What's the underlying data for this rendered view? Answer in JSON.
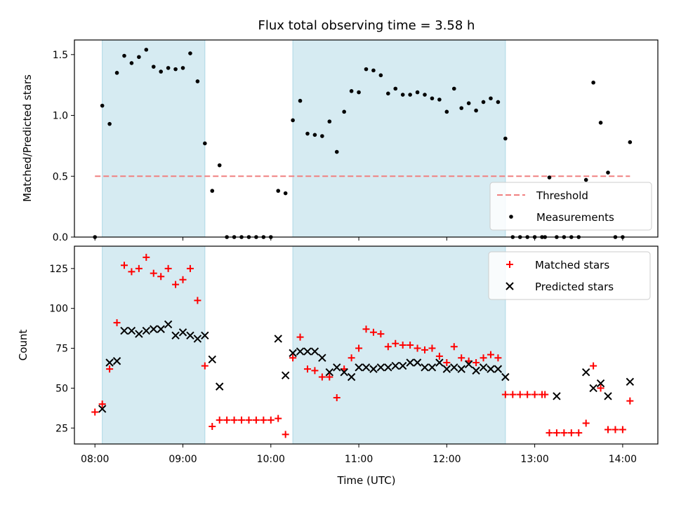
{
  "chart_data": [
    {
      "type": "scatter",
      "title": "Flux total observing time = 3.58 h",
      "ylabel": "Matched/Predicted stars",
      "xlabel": "",
      "xlim": [
        "07:46",
        "14:24"
      ],
      "ylim": [
        0,
        1.62
      ],
      "yticks": [
        0.0,
        0.5,
        1.0,
        1.5
      ],
      "ytick_labels": [
        "0.0",
        "0.5",
        "1.0",
        "1.5"
      ],
      "xticks": [
        "08:00",
        "09:00",
        "10:00",
        "11:00",
        "12:00",
        "13:00",
        "14:00"
      ],
      "shaded_intervals": [
        [
          "08:05",
          "09:15"
        ],
        [
          "10:15",
          "12:40"
        ]
      ],
      "shade_color": "#add8e6",
      "legend": {
        "position": "lower-right",
        "entries": [
          {
            "label": "Threshold",
            "marker": "dashed-line",
            "color": "#f08080"
          },
          {
            "label": "Measurements",
            "marker": "dot",
            "color": "#000000"
          }
        ]
      },
      "series": [
        {
          "name": "Threshold",
          "style": "dashed-line",
          "color": "#f08080",
          "x": [
            "08:00",
            "14:05"
          ],
          "y": [
            0.5,
            0.5
          ]
        },
        {
          "name": "Measurements",
          "style": "dot",
          "color": "#000000",
          "x": [
            "08:00",
            "08:05",
            "08:10",
            "08:15",
            "08:20",
            "08:25",
            "08:30",
            "08:35",
            "08:40",
            "08:45",
            "08:50",
            "08:55",
            "09:00",
            "09:05",
            "09:10",
            "09:15",
            "09:20",
            "09:25",
            "09:30",
            "09:35",
            "09:40",
            "09:45",
            "09:50",
            "09:55",
            "10:00",
            "10:05",
            "10:10",
            "10:15",
            "10:20",
            "10:25",
            "10:30",
            "10:35",
            "10:40",
            "10:45",
            "10:50",
            "10:55",
            "11:00",
            "11:05",
            "11:10",
            "11:15",
            "11:20",
            "11:25",
            "11:30",
            "11:35",
            "11:40",
            "11:45",
            "11:50",
            "11:55",
            "12:00",
            "12:05",
            "12:10",
            "12:15",
            "12:20",
            "12:25",
            "12:30",
            "12:35",
            "12:40",
            "12:45",
            "12:50",
            "12:55",
            "13:00",
            "13:05",
            "13:07",
            "13:10",
            "13:15",
            "13:20",
            "13:25",
            "13:30",
            "13:35",
            "13:40",
            "13:45",
            "13:50",
            "13:55",
            "14:00",
            "14:05"
          ],
          "y": [
            0.0,
            1.08,
            0.93,
            1.35,
            1.49,
            1.43,
            1.48,
            1.54,
            1.4,
            1.36,
            1.39,
            1.38,
            1.39,
            1.51,
            1.28,
            0.77,
            0.38,
            0.59,
            0.0,
            0.0,
            0.0,
            0.0,
            0.0,
            0.0,
            0.0,
            0.38,
            0.36,
            0.96,
            1.12,
            0.85,
            0.84,
            0.83,
            0.95,
            0.7,
            1.03,
            1.2,
            1.19,
            1.38,
            1.37,
            1.33,
            1.18,
            1.22,
            1.17,
            1.17,
            1.19,
            1.17,
            1.14,
            1.13,
            1.03,
            1.22,
            1.06,
            1.1,
            1.04,
            1.11,
            1.14,
            1.11,
            0.81,
            0.0,
            0.0,
            0.0,
            0.0,
            0.0,
            0.0,
            0.49,
            0.0,
            0.0,
            0.0,
            0.0,
            0.47,
            1.27,
            0.94,
            0.53,
            0.0,
            0.0,
            0.78
          ]
        }
      ]
    },
    {
      "type": "scatter",
      "title": "",
      "ylabel": "Count",
      "xlabel": "Time (UTC)",
      "xlim": [
        "07:46",
        "14:24"
      ],
      "ylim": [
        15,
        139
      ],
      "yticks": [
        25,
        50,
        75,
        100,
        125
      ],
      "ytick_labels": [
        "25",
        "50",
        "75",
        "100",
        "125"
      ],
      "xticks": [
        "08:00",
        "09:00",
        "10:00",
        "11:00",
        "12:00",
        "13:00",
        "14:00"
      ],
      "xtick_labels": [
        "08:00",
        "09:00",
        "10:00",
        "11:00",
        "12:00",
        "13:00",
        "14:00"
      ],
      "shaded_intervals": [
        [
          "08:05",
          "09:15"
        ],
        [
          "10:15",
          "12:40"
        ]
      ],
      "shade_color": "#add8e6",
      "legend": {
        "position": "upper-right",
        "entries": [
          {
            "label": "Matched stars",
            "marker": "plus",
            "color": "#ff0000"
          },
          {
            "label": "Predicted stars",
            "marker": "cross",
            "color": "#000000"
          }
        ]
      },
      "series": [
        {
          "name": "Matched stars",
          "style": "plus",
          "color": "#ff0000",
          "x": [
            "08:00",
            "08:05",
            "08:10",
            "08:15",
            "08:20",
            "08:25",
            "08:30",
            "08:35",
            "08:40",
            "08:45",
            "08:50",
            "08:55",
            "09:00",
            "09:05",
            "09:10",
            "09:15",
            "09:20",
            "09:25",
            "09:30",
            "09:35",
            "09:40",
            "09:45",
            "09:50",
            "09:55",
            "10:00",
            "10:05",
            "10:10",
            "10:15",
            "10:20",
            "10:25",
            "10:30",
            "10:35",
            "10:40",
            "10:45",
            "10:50",
            "10:55",
            "11:00",
            "11:05",
            "11:10",
            "11:15",
            "11:20",
            "11:25",
            "11:30",
            "11:35",
            "11:40",
            "11:45",
            "11:50",
            "11:55",
            "12:00",
            "12:05",
            "12:10",
            "12:15",
            "12:20",
            "12:25",
            "12:30",
            "12:35",
            "12:40",
            "12:45",
            "12:50",
            "12:55",
            "13:00",
            "13:05",
            "13:07",
            "13:10",
            "13:15",
            "13:20",
            "13:25",
            "13:30",
            "13:35",
            "13:40",
            "13:45",
            "13:50",
            "13:55",
            "14:00",
            "14:05"
          ],
          "y": [
            35,
            40,
            62,
            91,
            127,
            123,
            125,
            132,
            122,
            120,
            125,
            115,
            118,
            125,
            105,
            64,
            26,
            30,
            30,
            30,
            30,
            30,
            30,
            30,
            30,
            31,
            21,
            69,
            82,
            62,
            61,
            57,
            57,
            44,
            62,
            69,
            75,
            87,
            85,
            84,
            76,
            78,
            77,
            77,
            75,
            74,
            75,
            70,
            66,
            76,
            69,
            67,
            66,
            69,
            71,
            69,
            46,
            46,
            46,
            46,
            46,
            46,
            46,
            22,
            22,
            22,
            22,
            22,
            28,
            64,
            50,
            24,
            24,
            24,
            42
          ]
        },
        {
          "name": "Predicted stars",
          "style": "cross",
          "color": "#000000",
          "x": [
            "08:05",
            "08:10",
            "08:15",
            "08:20",
            "08:25",
            "08:30",
            "08:35",
            "08:40",
            "08:45",
            "08:50",
            "08:55",
            "09:00",
            "09:05",
            "09:10",
            "09:15",
            "09:20",
            "09:25",
            "10:05",
            "10:10",
            "10:15",
            "10:20",
            "10:25",
            "10:30",
            "10:35",
            "10:40",
            "10:45",
            "10:50",
            "10:55",
            "11:00",
            "11:05",
            "11:10",
            "11:15",
            "11:20",
            "11:25",
            "11:30",
            "11:35",
            "11:40",
            "11:45",
            "11:50",
            "11:55",
            "12:00",
            "12:05",
            "12:10",
            "12:15",
            "12:20",
            "12:25",
            "12:30",
            "12:35",
            "12:40",
            "13:15",
            "13:35",
            "13:40",
            "13:45",
            "13:50",
            "14:05"
          ],
          "y": [
            37,
            66,
            67,
            86,
            86,
            84,
            86,
            87,
            87,
            90,
            83,
            85,
            83,
            81,
            83,
            68,
            51,
            81,
            58,
            72,
            73,
            73,
            73,
            69,
            60,
            63,
            60,
            57,
            63,
            63,
            62,
            63,
            63,
            64,
            64,
            66,
            66,
            63,
            63,
            66,
            62,
            63,
            62,
            65,
            61,
            63,
            62,
            62,
            57,
            45,
            60,
            50,
            53,
            45,
            54
          ]
        }
      ]
    }
  ]
}
